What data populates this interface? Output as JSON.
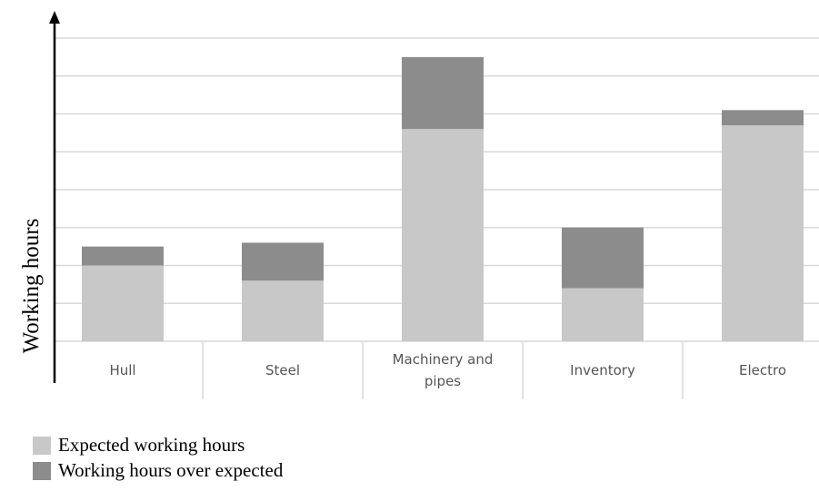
{
  "chart_data": {
    "type": "stacked_bar",
    "y_label": "Working hours",
    "categories": [
      "Hull",
      "Steel",
      "Machinery and pipes",
      "Inventory",
      "Electro"
    ],
    "series": [
      {
        "name": "Expected working hours",
        "color": "#c8c8c8",
        "values": [
          2.0,
          1.6,
          5.6,
          1.4,
          5.7
        ]
      },
      {
        "name": "Working hours over expected",
        "color": "#8c8c8c",
        "values": [
          0.5,
          1.0,
          1.9,
          1.6,
          0.4
        ]
      }
    ],
    "ylim": [
      0,
      8
    ],
    "yticks": [
      0,
      1,
      2,
      3,
      4,
      5,
      6,
      7,
      8
    ],
    "grid": true
  }
}
